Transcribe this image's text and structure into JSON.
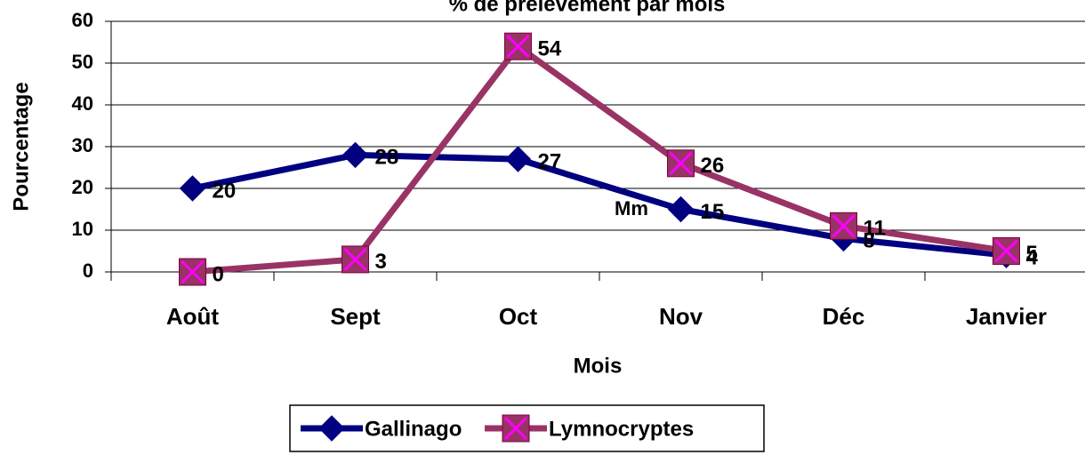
{
  "chart_data": {
    "type": "line",
    "title": "% de prélèvement par mois",
    "x_label": "Mois",
    "y_label": "Pourcentage",
    "categories": [
      "Août",
      "Sept",
      "Oct",
      "Nov",
      "Déc",
      "Janvier"
    ],
    "series": [
      {
        "name": "Gallinago",
        "color": "#000080",
        "marker": "diamond",
        "values": [
          20,
          28,
          27,
          15,
          8,
          4
        ]
      },
      {
        "name": "Lymnocryptes",
        "color": "#993366",
        "marker": "square-x",
        "values": [
          0,
          3,
          54,
          26,
          11,
          5
        ]
      }
    ],
    "annotation": "Mm",
    "ylim": [
      0,
      60
    ],
    "yticks": [
      0,
      10,
      20,
      30,
      40,
      50,
      60
    ],
    "grid": true,
    "legend": "bottom"
  }
}
